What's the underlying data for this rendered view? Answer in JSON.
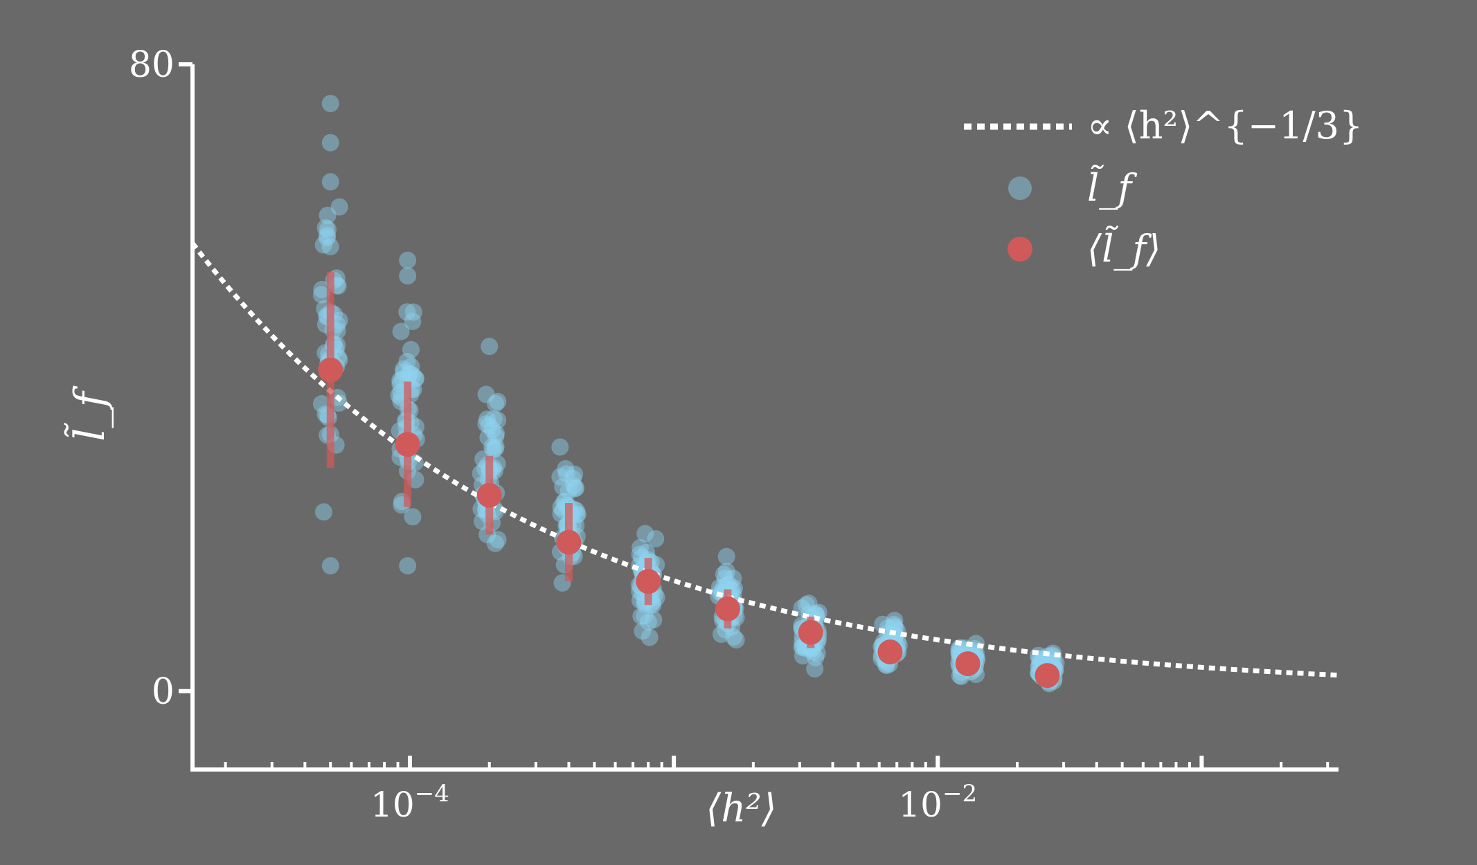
{
  "chart_data": {
    "type": "scatter",
    "title": "",
    "xlabel": "⟨h²⟩",
    "ylabel": "l̃_f",
    "x_scale": "log",
    "xlim": [
      1.5e-05,
      0.33
    ],
    "ylim": [
      -10,
      80
    ],
    "y_ticks": [
      {
        "value": 0,
        "label": "0"
      },
      {
        "value": 80,
        "label": "80"
      }
    ],
    "x_ticks": [
      {
        "value": 0.0001,
        "label": "10−4"
      },
      {
        "value": 0.01,
        "label": "10−2"
      }
    ],
    "grid": false,
    "legend_position": "top-right",
    "series": [
      {
        "name": "∝ ⟨h²⟩^{−1/3}",
        "kind": "line",
        "style": "dotted",
        "color": "#ffffff",
        "formula": "y = 1.41 * x^(-1/3)"
      },
      {
        "name": "l̃_f",
        "kind": "scatter",
        "color": "#8ed3f0",
        "groups": [
          {
            "x": 5e-05,
            "range": [
              16,
              75
            ],
            "outliers": [
              16,
              65,
              70,
              75
            ]
          },
          {
            "x": 9.8e-05,
            "range": [
              16,
              55
            ],
            "outliers": [
              16,
              53,
              55
            ]
          },
          {
            "x": 0.0002,
            "range": [
              14,
              44
            ],
            "outliers": [
              44
            ]
          },
          {
            "x": 0.0004,
            "range": [
              11,
              32
            ]
          },
          {
            "x": 0.0008,
            "range": [
              6,
              22
            ]
          },
          {
            "x": 0.0016,
            "range": [
              5,
              18
            ]
          },
          {
            "x": 0.0033,
            "range": [
              2,
              13
            ]
          },
          {
            "x": 0.0066,
            "range": [
              1,
              10
            ]
          },
          {
            "x": 0.013,
            "range": [
              1,
              7
            ]
          },
          {
            "x": 0.026,
            "range": [
              0,
              6
            ]
          }
        ]
      },
      {
        "name": "⟨l̃_f⟩",
        "kind": "scatter_errorbar",
        "color": "#d05a59",
        "x": [
          5e-05,
          9.8e-05,
          0.0002,
          0.0004,
          0.0008,
          0.0016,
          0.0033,
          0.0066,
          0.013,
          0.026
        ],
        "y": [
          41,
          31.5,
          25,
          19,
          14,
          10.5,
          7.5,
          5,
          3.5,
          2
        ],
        "err": [
          12.5,
          8,
          5,
          5,
          3,
          2.5,
          2,
          1.4,
          1.2,
          1
        ]
      }
    ]
  }
}
